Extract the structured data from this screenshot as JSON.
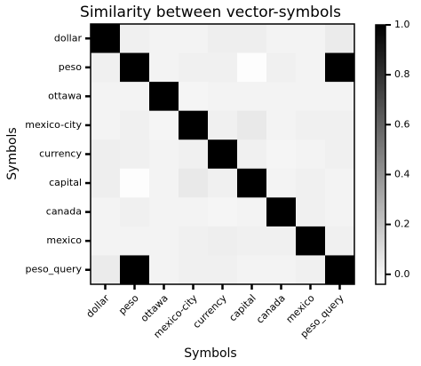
{
  "chart_data": {
    "type": "heatmap",
    "title": "Similarity between vector-symbols",
    "xlabel": "Symbols",
    "ylabel": "Symbols",
    "categories": [
      "dollar",
      "peso",
      "ottawa",
      "mexico-city",
      "currency",
      "capital",
      "canada",
      "mexico",
      "peso_query"
    ],
    "values": [
      [
        1,
        0.02,
        0.01,
        0.01,
        0.03,
        0.03,
        0.01,
        0.01,
        0.04
      ],
      [
        0.02,
        1,
        0.01,
        0.02,
        0.02,
        -0.03,
        0.02,
        0.01,
        1
      ],
      [
        0.01,
        0.01,
        1,
        0.0,
        0.01,
        0.01,
        0.01,
        0.01,
        0.01
      ],
      [
        0.01,
        0.02,
        0.0,
        1,
        0.02,
        0.05,
        0.01,
        0.02,
        0.02
      ],
      [
        0.03,
        0.02,
        0.01,
        0.02,
        1,
        0.02,
        0.0,
        0.01,
        0.02
      ],
      [
        0.03,
        -0.03,
        0.01,
        0.05,
        0.02,
        1,
        0.01,
        0.02,
        0.01
      ],
      [
        0.01,
        0.02,
        0.01,
        0.01,
        0.0,
        0.01,
        1,
        0.02,
        0.01
      ],
      [
        0.01,
        0.01,
        0.01,
        0.02,
        0.03,
        0.02,
        0.02,
        1,
        0.02
      ],
      [
        0.04,
        1,
        0.01,
        0.02,
        0.02,
        0.01,
        0.01,
        0.02,
        1
      ]
    ],
    "colormap": "Greys",
    "clim": [
      -0.04,
      1.0
    ],
    "cticks": [
      {
        "value": 0,
        "label": "0.0"
      },
      {
        "value": 0.2,
        "label": "0.2"
      },
      {
        "value": 0.4,
        "label": "0.4"
      },
      {
        "value": 0.6,
        "label": "0.6"
      },
      {
        "value": 0.8,
        "label": "0.8"
      },
      {
        "value": 1,
        "label": "1.0"
      }
    ]
  }
}
